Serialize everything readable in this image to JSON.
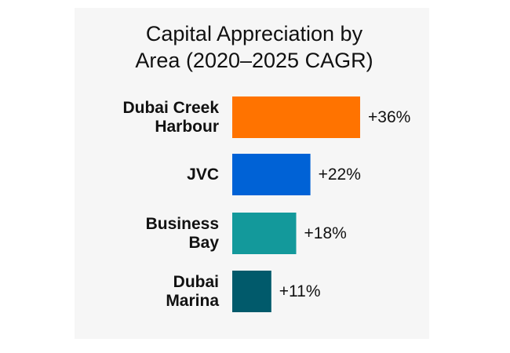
{
  "chart_data": {
    "type": "bar",
    "orientation": "horizontal",
    "title": [
      "Capital Appreciation by",
      "Area (2020–2025 CAGR)"
    ],
    "categories": [
      [
        "Dubai Creek",
        "Harbour"
      ],
      [
        "JVC"
      ],
      [
        "Business",
        "Bay"
      ],
      [
        "Dubai",
        "Marina"
      ]
    ],
    "values": [
      36,
      22,
      18,
      11
    ],
    "value_labels": [
      "+36%",
      "+22%",
      "+18%",
      "+11%"
    ],
    "colors": [
      "#ff7300",
      "#0062d6",
      "#13999b",
      "#015a6b"
    ],
    "xlim": [
      0,
      36
    ],
    "grid": false,
    "legend": "none"
  }
}
